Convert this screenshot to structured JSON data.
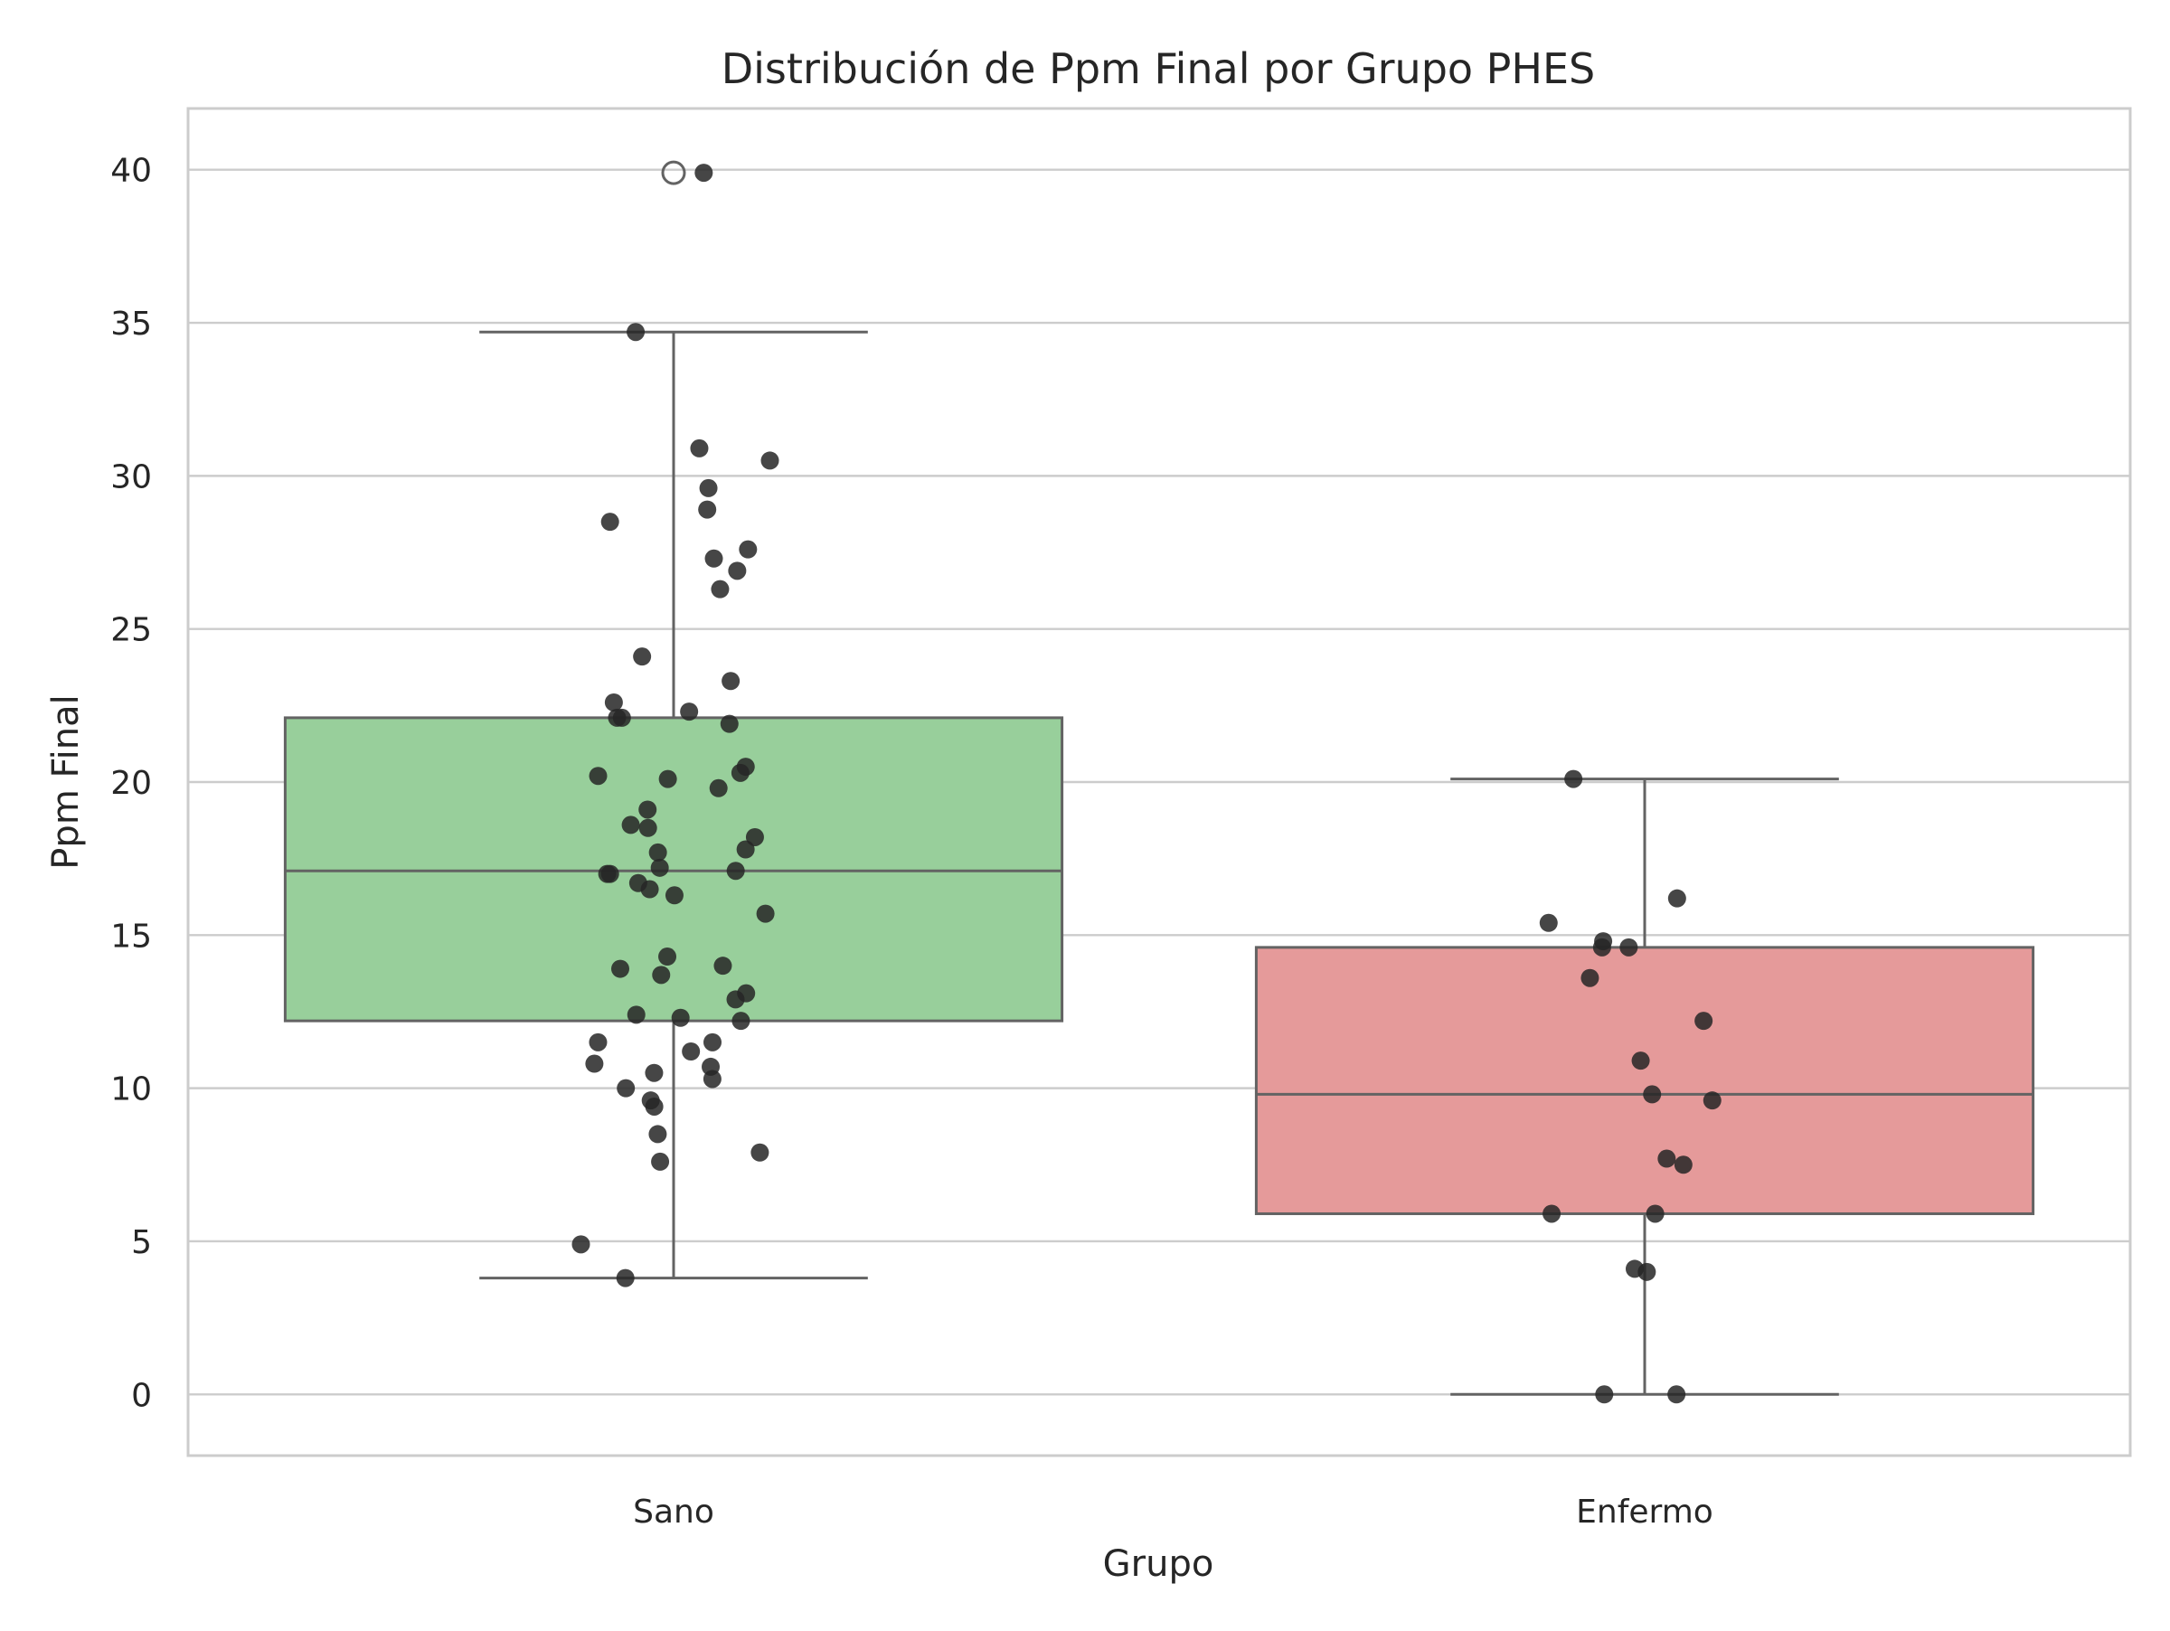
{
  "chart_data": {
    "type": "box",
    "title": "Distribución de Ppm Final por Grupo PHES",
    "xlabel": "Grupo",
    "ylabel": "Ppm Final",
    "categories": [
      "Sano",
      "Enfermo"
    ],
    "ylim": [
      -2,
      42
    ],
    "yticks": [
      0,
      5,
      10,
      15,
      20,
      25,
      30,
      35,
      40
    ],
    "grid": true,
    "colors": {
      "Sano": "#98cf9b",
      "Enfermo": "#e59a9a",
      "box_edge": "#636363",
      "point": "#262626",
      "grid": "#cccccc",
      "spine": "#cccccc"
    },
    "series": [
      {
        "category": "Sano",
        "box": {
          "min": 3.8,
          "q1": 12.2,
          "median": 17.1,
          "q3": 22.1,
          "max": 34.7
        },
        "outliers": [
          39.9
        ],
        "points": [
          39.9,
          34.7,
          30.9,
          30.5,
          29.6,
          28.9,
          28.5,
          27.6,
          27.3,
          26.9,
          26.3,
          24.1,
          23.3,
          22.6,
          22.3,
          22.1,
          22.1,
          21.9,
          20.5,
          20.3,
          20.2,
          20.1,
          19.8,
          19.1,
          18.6,
          18.5,
          18.2,
          17.8,
          17.7,
          17.2,
          17.1,
          17.0,
          17.0,
          16.7,
          16.5,
          16.3,
          15.7,
          14.3,
          14.0,
          13.9,
          13.7,
          13.1,
          12.9,
          12.4,
          12.3,
          12.2,
          11.5,
          11.5,
          11.2,
          10.8,
          10.7,
          10.5,
          10.3,
          10.0,
          9.6,
          9.4,
          8.5,
          7.9,
          7.6,
          4.9,
          3.8
        ]
      },
      {
        "category": "Enfermo",
        "box": {
          "min": 0.0,
          "q1": 5.9,
          "median": 9.8,
          "q3": 14.6,
          "max": 20.1
        },
        "outliers": [],
        "points": [
          20.1,
          16.2,
          15.4,
          14.8,
          14.6,
          14.6,
          13.6,
          12.2,
          10.9,
          9.8,
          9.6,
          7.7,
          7.5,
          5.9,
          5.9,
          4.1,
          4.0,
          0.0,
          0.0
        ]
      }
    ]
  }
}
